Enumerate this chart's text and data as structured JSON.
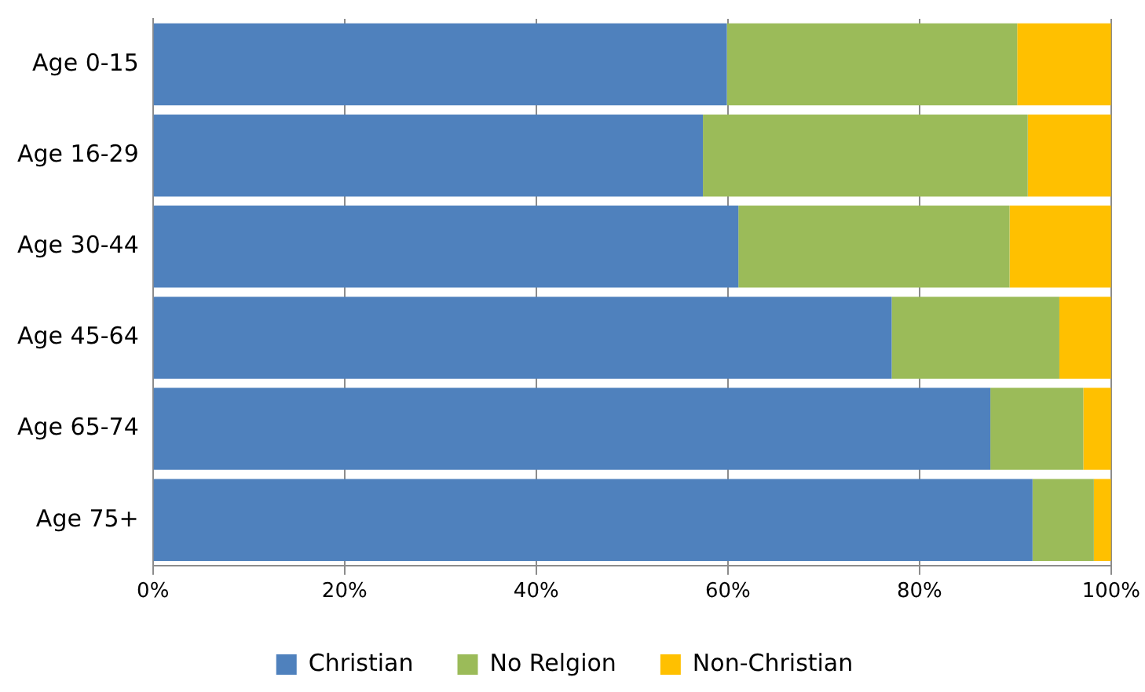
{
  "chart_data": {
    "type": "bar",
    "orientation": "horizontal",
    "stacked": true,
    "categories": [
      "Age 0-15",
      "Age 16-29",
      "Age 30-44",
      "Age 45-64",
      "Age 65-74",
      "Age 75+"
    ],
    "series": [
      {
        "name": "Christian",
        "color": "#4f81bd",
        "values": [
          59.9,
          57.4,
          61.1,
          77.1,
          87.4,
          91.8
        ]
      },
      {
        "name": "No Relgion",
        "color": "#9bbb59",
        "values": [
          30.3,
          33.9,
          28.3,
          17.5,
          9.7,
          6.4
        ]
      },
      {
        "name": "Non-Christian",
        "color": "#ffc000",
        "values": [
          9.8,
          8.7,
          10.6,
          5.4,
          2.9,
          1.8
        ]
      }
    ],
    "xlim": [
      0,
      100
    ],
    "xticks": [
      {
        "value": 0,
        "label": "0%"
      },
      {
        "value": 20,
        "label": "20%"
      },
      {
        "value": 40,
        "label": "40%"
      },
      {
        "value": 60,
        "label": "60%"
      },
      {
        "value": 80,
        "label": "80%"
      },
      {
        "value": 100,
        "label": "100%"
      }
    ],
    "grid": "x",
    "legend": "bottom"
  }
}
